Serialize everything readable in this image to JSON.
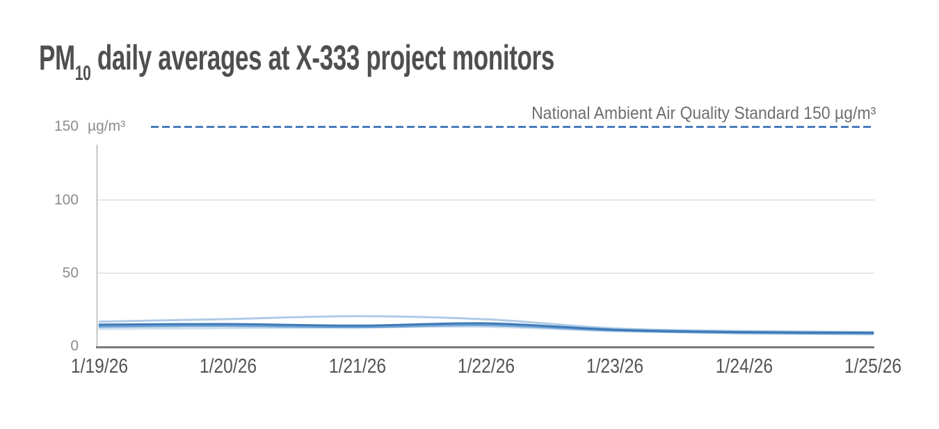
{
  "title": {
    "prefix": "PM",
    "subscript": "10",
    "rest": " daily averages at X-333 project monitors"
  },
  "chart_data": {
    "type": "line",
    "title": "PM10 daily averages at X-333 project monitors",
    "unit": "µg/m³",
    "xlabel": "",
    "ylabel": "µg/m³",
    "ylim": [
      0,
      150
    ],
    "grid": "horizontal",
    "legend": "none",
    "y_ticks": [
      {
        "label": "150",
        "value": 150
      },
      {
        "label": "100",
        "value": 100
      },
      {
        "label": "50",
        "value": 50
      },
      {
        "label": "0",
        "value": 0
      }
    ],
    "y_gridlines": [
      100,
      50
    ],
    "categories": [
      "1/19/26",
      "1/20/26",
      "1/21/26",
      "1/22/26",
      "1/23/26",
      "1/24/26",
      "1/25/26"
    ],
    "series": [
      {
        "name": "series-1",
        "color": "#aac8e6",
        "values": [
          16.8,
          18.6,
          20.6,
          18.4,
          12.2,
          10.4,
          9.8
        ]
      },
      {
        "name": "series-2",
        "color": "#c9dcee",
        "values": [
          11.9,
          12.4,
          12.9,
          13.3,
          10.3,
          8.8,
          8.1
        ]
      },
      {
        "name": "series-3",
        "color": "#87b3dd",
        "values": [
          14.2,
          14.7,
          13.8,
          15.2,
          11.1,
          9.5,
          9.0
        ]
      },
      {
        "name": "series-4",
        "color": "#6ba0d3",
        "values": [
          13.4,
          13.9,
          13.0,
          14.4,
          10.7,
          9.1,
          8.6
        ]
      },
      {
        "name": "series-5",
        "color": "#3a76b5",
        "values": [
          14.8,
          15.2,
          14.1,
          15.7,
          11.3,
          9.7,
          9.2
        ]
      }
    ],
    "standard_line": {
      "label": "National Ambient Air Quality Standard 150 µg/m³",
      "value": 150,
      "color": "#4a7cba"
    }
  },
  "colors": {
    "title": "#4f4f4f",
    "x_tick_label": "#545454",
    "y_tick_label": "#8c8c8c",
    "annotation": "#6f6f6f",
    "gridline": "#dedede",
    "y_axis_line": "#c4c4c4",
    "x_axis_line": "#7a7a7a"
  }
}
